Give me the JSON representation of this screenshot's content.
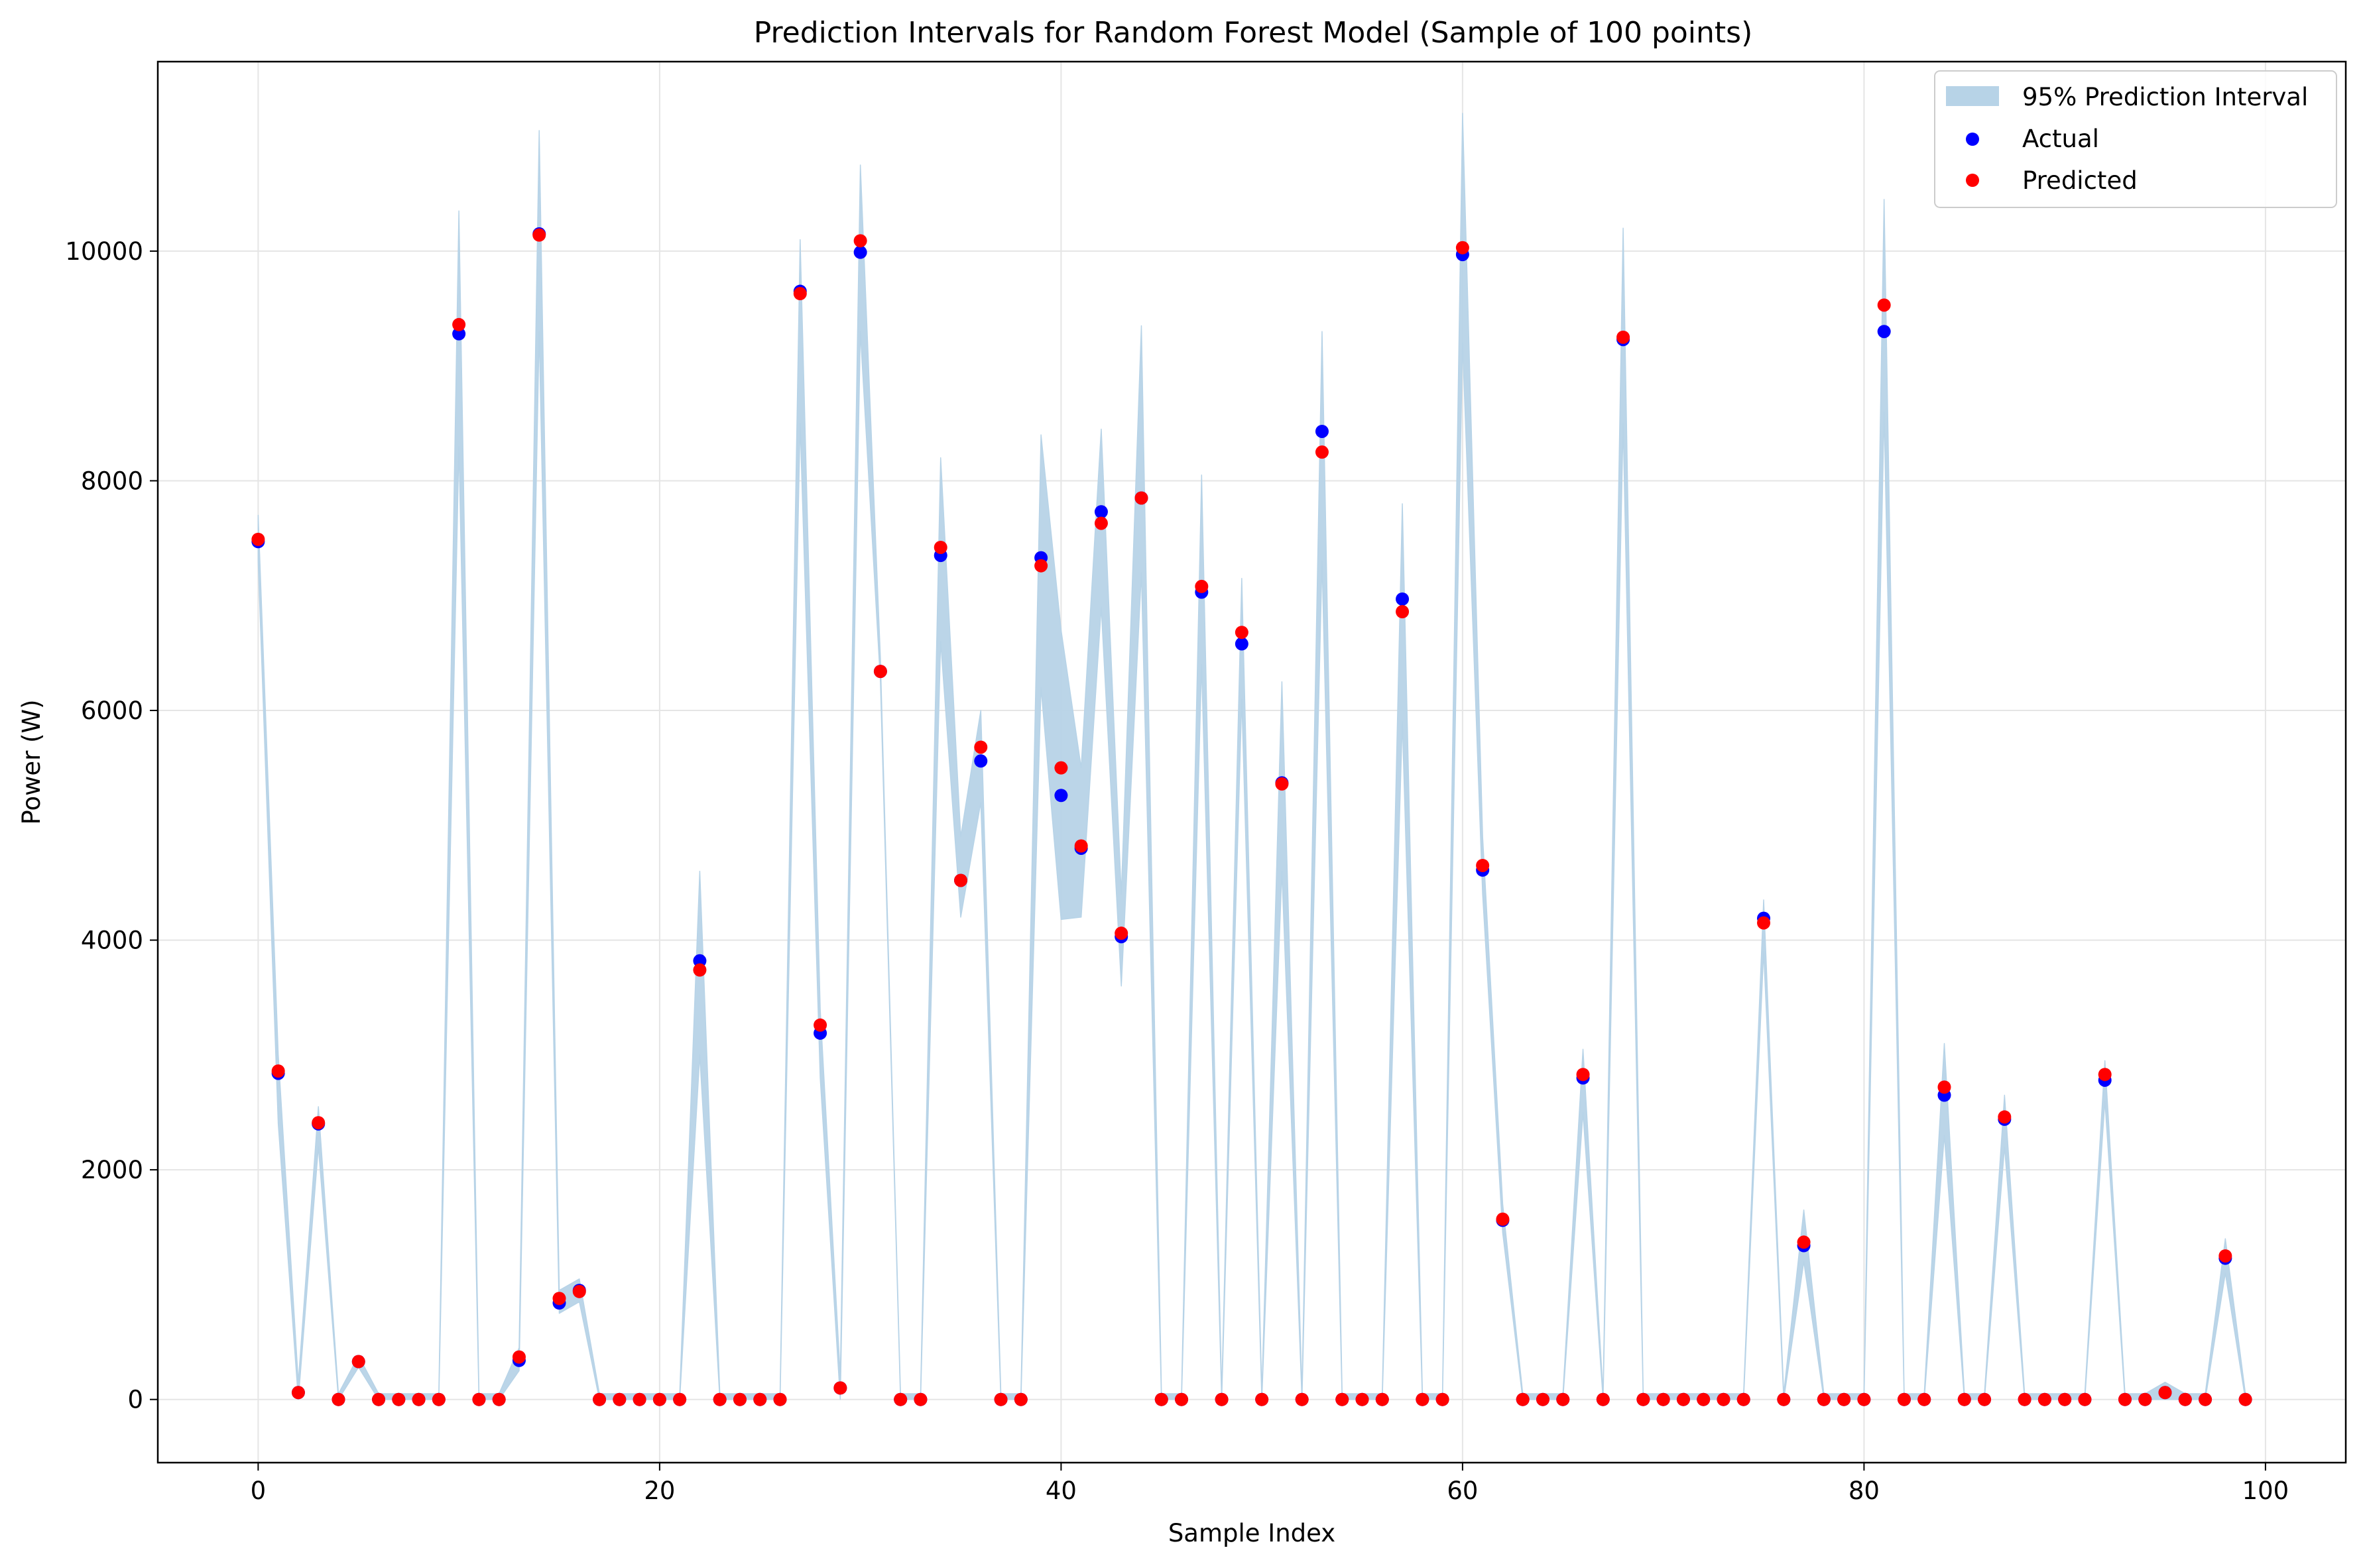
{
  "chart_data": {
    "type": "scatter",
    "title": "Prediction Intervals for Random Forest Model (Sample of 100 points)",
    "xlabel": "Sample Index",
    "ylabel": "Power (W)",
    "xlim": [
      -5,
      104
    ],
    "ylim": [
      -550,
      11650
    ],
    "xticks": [
      0,
      20,
      40,
      60,
      80,
      100
    ],
    "yticks": [
      0,
      2000,
      4000,
      6000,
      8000,
      10000
    ],
    "grid": true,
    "legend_position": "top-right",
    "legend": [
      {
        "label": "95% Prediction Interval",
        "kind": "band",
        "color": "#b7d3e7"
      },
      {
        "label": "Actual",
        "kind": "marker",
        "color": "#0000ff"
      },
      {
        "label": "Predicted",
        "kind": "marker",
        "color": "#ff0000"
      }
    ],
    "colors": {
      "interval": "#b7d3e7",
      "actual": "#0000ff",
      "predicted": "#ff0000",
      "grid": "#e5e5e5"
    },
    "series": [
      {
        "name": "Actual",
        "x_start": 0,
        "values": [
          7470,
          2840,
          60,
          2400,
          0,
          330,
          0,
          0,
          0,
          0,
          9280,
          0,
          0,
          340,
          10150,
          840,
          950,
          0,
          0,
          0,
          0,
          0,
          3820,
          0,
          0,
          0,
          0,
          9650,
          3190,
          100,
          9990,
          6340,
          0,
          0,
          7350,
          4520,
          5560,
          0,
          0,
          7330,
          5260,
          4800,
          7730,
          4030,
          7850,
          0,
          0,
          7030,
          0,
          6580,
          0,
          5370,
          0,
          8430,
          0,
          0,
          0,
          6970,
          0,
          0,
          9970,
          4610,
          1560,
          0,
          0,
          0,
          2800,
          0,
          9230,
          0,
          0,
          0,
          0,
          0,
          0,
          4190,
          0,
          1340,
          0,
          0,
          0,
          9300,
          0,
          0,
          2650,
          0,
          0,
          2440,
          0,
          0,
          0,
          0,
          2780,
          0,
          0,
          60,
          0,
          0,
          1230,
          0
        ]
      },
      {
        "name": "Predicted",
        "x_start": 0,
        "values": [
          7490,
          2860,
          60,
          2410,
          0,
          330,
          0,
          0,
          0,
          0,
          9360,
          0,
          0,
          370,
          10140,
          880,
          940,
          0,
          0,
          0,
          0,
          0,
          3740,
          0,
          0,
          0,
          0,
          9630,
          3260,
          100,
          10090,
          6340,
          0,
          0,
          7420,
          4520,
          5680,
          0,
          0,
          7260,
          5500,
          4820,
          7630,
          4060,
          7850,
          0,
          0,
          7080,
          0,
          6680,
          0,
          5360,
          0,
          8250,
          0,
          0,
          0,
          6860,
          0,
          0,
          10030,
          4650,
          1570,
          0,
          0,
          0,
          2830,
          0,
          9250,
          0,
          0,
          0,
          0,
          0,
          0,
          4150,
          0,
          1370,
          0,
          0,
          0,
          9530,
          0,
          0,
          2720,
          0,
          0,
          2460,
          0,
          0,
          0,
          0,
          2830,
          0,
          0,
          60,
          0,
          0,
          1250,
          0
        ]
      },
      {
        "name": "95% Prediction Interval",
        "x_start": 0,
        "lower": [
          7300,
          2400,
          0,
          2200,
          0,
          280,
          0,
          0,
          0,
          0,
          8300,
          0,
          0,
          250,
          9300,
          750,
          850,
          0,
          0,
          0,
          0,
          0,
          3000,
          0,
          0,
          0,
          0,
          8500,
          2800,
          0,
          9300,
          6250,
          0,
          0,
          6600,
          4200,
          5200,
          0,
          0,
          6200,
          4180,
          4200,
          6900,
          3600,
          7200,
          0,
          0,
          6400,
          0,
          6100,
          0,
          4600,
          0,
          7300,
          0,
          0,
          0,
          5900,
          0,
          0,
          9200,
          4400,
          1450,
          0,
          0,
          0,
          2500,
          0,
          8500,
          0,
          0,
          0,
          0,
          0,
          0,
          3900,
          0,
          1200,
          0,
          0,
          0,
          8600,
          0,
          0,
          2300,
          0,
          0,
          2200,
          0,
          0,
          0,
          0,
          2600,
          0,
          0,
          0,
          0,
          0,
          1100,
          0
        ],
        "upper": [
          7700,
          3000,
          150,
          2550,
          50,
          380,
          50,
          50,
          50,
          50,
          10350,
          50,
          50,
          450,
          11050,
          950,
          1050,
          50,
          50,
          50,
          50,
          50,
          4600,
          50,
          50,
          50,
          50,
          10100,
          3400,
          200,
          10750,
          6450,
          50,
          50,
          8200,
          4900,
          6000,
          50,
          50,
          8400,
          6700,
          5500,
          8450,
          4400,
          9350,
          50,
          50,
          8050,
          50,
          7150,
          50,
          6250,
          50,
          9300,
          50,
          50,
          50,
          7800,
          50,
          50,
          11200,
          4900,
          1700,
          50,
          50,
          50,
          3050,
          50,
          10200,
          50,
          50,
          50,
          50,
          50,
          50,
          4350,
          50,
          1650,
          50,
          50,
          50,
          10450,
          50,
          50,
          3100,
          50,
          50,
          2650,
          50,
          50,
          50,
          50,
          2950,
          50,
          50,
          150,
          50,
          50,
          1400,
          50
        ]
      }
    ]
  }
}
